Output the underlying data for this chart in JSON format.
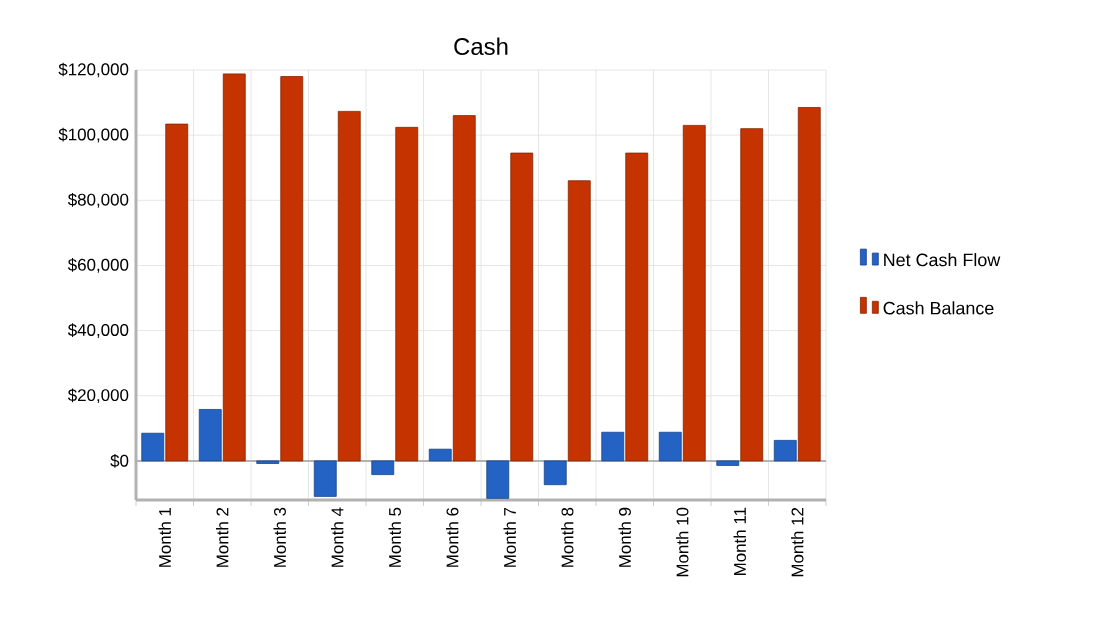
{
  "chart_data": {
    "type": "bar",
    "title": "Cash",
    "categories": [
      "Month 1",
      "Month 2",
      "Month 3",
      "Month 4",
      "Month 5",
      "Month 6",
      "Month 7",
      "Month 8",
      "Month 9",
      "Month 10",
      "Month 11",
      "Month 12"
    ],
    "series": [
      {
        "name": "Net Cash Flow",
        "color": "#2462c4",
        "values": [
          8500,
          15800,
          -800,
          -10900,
          -4200,
          3600,
          -11500,
          -7300,
          8800,
          8800,
          -1400,
          6300
        ]
      },
      {
        "name": "Cash Balance",
        "color": "#c43300",
        "values": [
          103400,
          118800,
          118000,
          107300,
          102400,
          106000,
          94500,
          86000,
          94500,
          103000,
          102000,
          108500
        ]
      }
    ],
    "ylim": [
      -12000,
      120000
    ],
    "yticks": [
      {
        "value": 0,
        "label": "$0"
      },
      {
        "value": 20000,
        "label": "$20,000"
      },
      {
        "value": 40000,
        "label": "$40,000"
      },
      {
        "value": 60000,
        "label": "$60,000"
      },
      {
        "value": 80000,
        "label": "$80,000"
      },
      {
        "value": 100000,
        "label": "$100,000"
      },
      {
        "value": 120000,
        "label": "$120,000"
      }
    ],
    "grid": true,
    "legend": "right"
  }
}
